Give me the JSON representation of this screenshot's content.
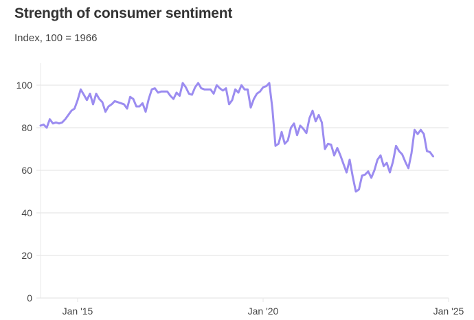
{
  "chart_data": {
    "type": "line",
    "title": "Strength of consumer sentiment",
    "subtitle": "Index, 100 = 1966",
    "xlabel": "",
    "ylabel": "",
    "ylim": [
      0,
      110
    ],
    "yticks": [
      0,
      20,
      40,
      60,
      80,
      100
    ],
    "xticks": [
      {
        "label": "Jan '15",
        "year": 2015
      },
      {
        "label": "Jan '20",
        "year": 2020
      },
      {
        "label": "Jan '25",
        "year": 2025
      }
    ],
    "xlim_years": [
      2014,
      2025
    ],
    "grid": true,
    "colors": {
      "main": "#9b8cf0",
      "highlight": "#3a1fd6",
      "grid": "#e8e8e8"
    },
    "series": [
      {
        "name": "Consumer sentiment",
        "start": "2014-01",
        "frequency": "monthly",
        "values": [
          81,
          81.5,
          80,
          84,
          82,
          82.5,
          82,
          82.5,
          84,
          86,
          88,
          89,
          93,
          98,
          95.5,
          93,
          96,
          91,
          96,
          93.5,
          92,
          87.5,
          90,
          91,
          92.5,
          92,
          91.5,
          91,
          89,
          94.5,
          93.5,
          90,
          90,
          91.5,
          87.5,
          93.5,
          98,
          98.5,
          96.5,
          97,
          97,
          97,
          95,
          93.5,
          96.5,
          95,
          101,
          99,
          96,
          95.5,
          99,
          101,
          98.5,
          98,
          98,
          98,
          96,
          100,
          98.5,
          97.5,
          98.5,
          91,
          93,
          98,
          96.5,
          100,
          98,
          98,
          89.5,
          93.5,
          96,
          97,
          99,
          99.5,
          101,
          89,
          71.5,
          72.5,
          78,
          72.5,
          74,
          80,
          82,
          76.5,
          81,
          79.5,
          77.5,
          84.5,
          88,
          83,
          86,
          82.5,
          70,
          72.5,
          72,
          67,
          70.5,
          67,
          63,
          59,
          65,
          57,
          50,
          51,
          57.5,
          58,
          59.5,
          56.5,
          60,
          65,
          67,
          62,
          63.5,
          59,
          64,
          71.5,
          69,
          67.5,
          64,
          61,
          68,
          79,
          77,
          79,
          77,
          69,
          68.5,
          66.5
        ]
      }
    ],
    "highlight_from_index": 128
  }
}
